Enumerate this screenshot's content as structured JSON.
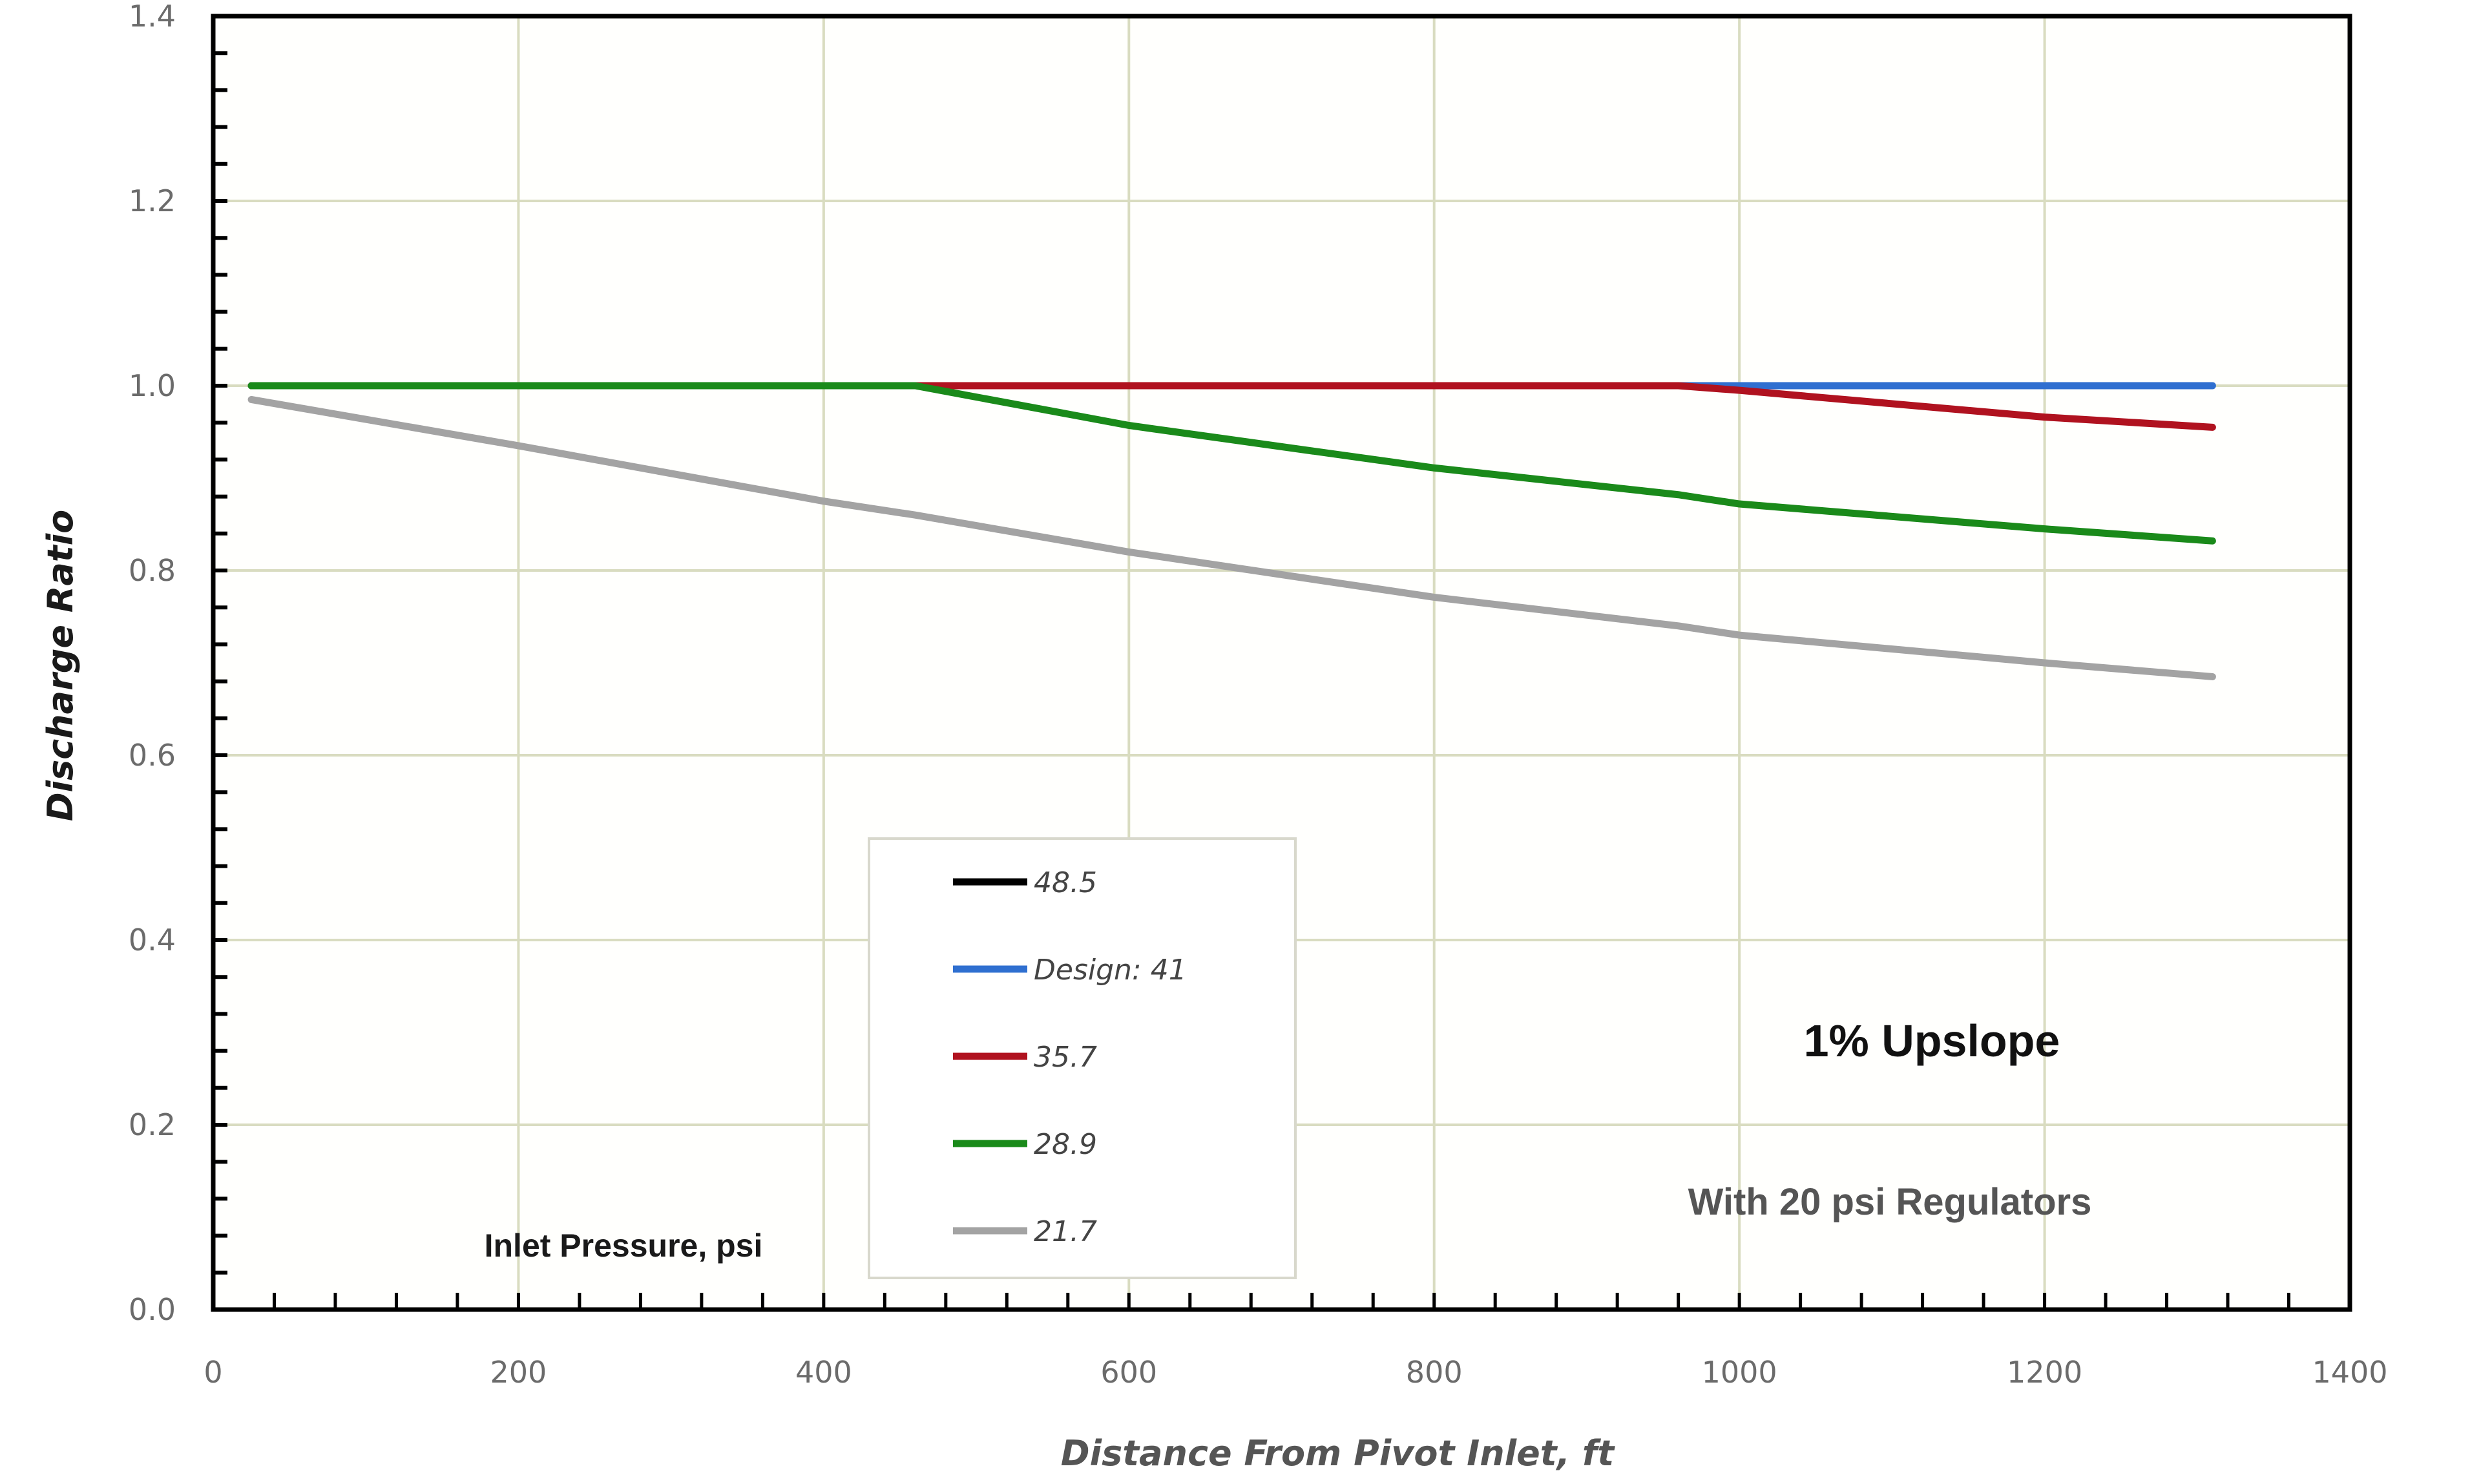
{
  "chart_data": {
    "type": "line",
    "title": "",
    "xlabel": "Distance From Pivot Inlet, ft",
    "ylabel": "Discharge Ratio",
    "xlim": [
      0,
      1400
    ],
    "ylim": [
      0,
      1.4
    ],
    "x_ticks": [
      "0",
      "200",
      "400",
      "600",
      "800",
      "1000",
      "1200",
      "1400"
    ],
    "y_ticks": [
      "0.0",
      "0.2",
      "0.4",
      "0.6",
      "0.8",
      "1.0",
      "1.2",
      "1.4"
    ],
    "grid": true,
    "legend_position": "lower-center-left",
    "legend_title": "Inlet Pressure, psi",
    "annotations": [
      "1% Upslope",
      "With 20 psi Regulators"
    ],
    "x": [
      25,
      200,
      400,
      460,
      600,
      800,
      960,
      1000,
      1200,
      1310
    ],
    "series": [
      {
        "name": "48.5",
        "color": "#000000",
        "values": [
          1.0,
          1.0,
          1.0,
          1.0,
          1.0,
          1.0,
          1.0,
          1.0,
          1.0,
          1.0
        ],
        "visible": false
      },
      {
        "name": "Design: 41",
        "color": "#2f6fd0",
        "values": [
          1.0,
          1.0,
          1.0,
          1.0,
          1.0,
          1.0,
          1.0,
          1.0,
          1.0,
          1.0
        ],
        "visible": true
      },
      {
        "name": "35.7",
        "color": "#b0121f",
        "values": [
          1.0,
          1.0,
          1.0,
          1.0,
          1.0,
          1.0,
          1.0,
          0.995,
          0.966,
          0.955
        ],
        "visible": true
      },
      {
        "name": "28.9",
        "color": "#1a8a1a",
        "values": [
          1.0,
          1.0,
          1.0,
          1.0,
          0.957,
          0.911,
          0.882,
          0.872,
          0.845,
          0.832
        ],
        "visible": true
      },
      {
        "name": "21.7",
        "color": "#a3a3a3",
        "values": [
          0.985,
          0.935,
          0.875,
          0.86,
          0.82,
          0.771,
          0.74,
          0.73,
          0.7,
          0.685
        ],
        "visible": true
      }
    ]
  },
  "plot": {
    "annotation_main": "1% Upslope",
    "annotation_sub": "With 20 psi Regulators",
    "inlet_label": "Inlet Pressure, psi",
    "x_axis_title": "Distance From Pivot Inlet, ft",
    "y_axis_title": "Discharge Ratio"
  },
  "legend": {
    "items": [
      {
        "label": "48.5",
        "color": "#000000"
      },
      {
        "label": "Design: 41",
        "color": "#2f6fd0"
      },
      {
        "label": "35.7",
        "color": "#b0121f"
      },
      {
        "label": "28.9",
        "color": "#1a8a1a"
      },
      {
        "label": "21.7",
        "color": "#a3a3a3"
      }
    ]
  },
  "colors": {
    "grid": "#d9dcc0",
    "axis": "#000000",
    "legend_border": "#d8d8cc"
  }
}
